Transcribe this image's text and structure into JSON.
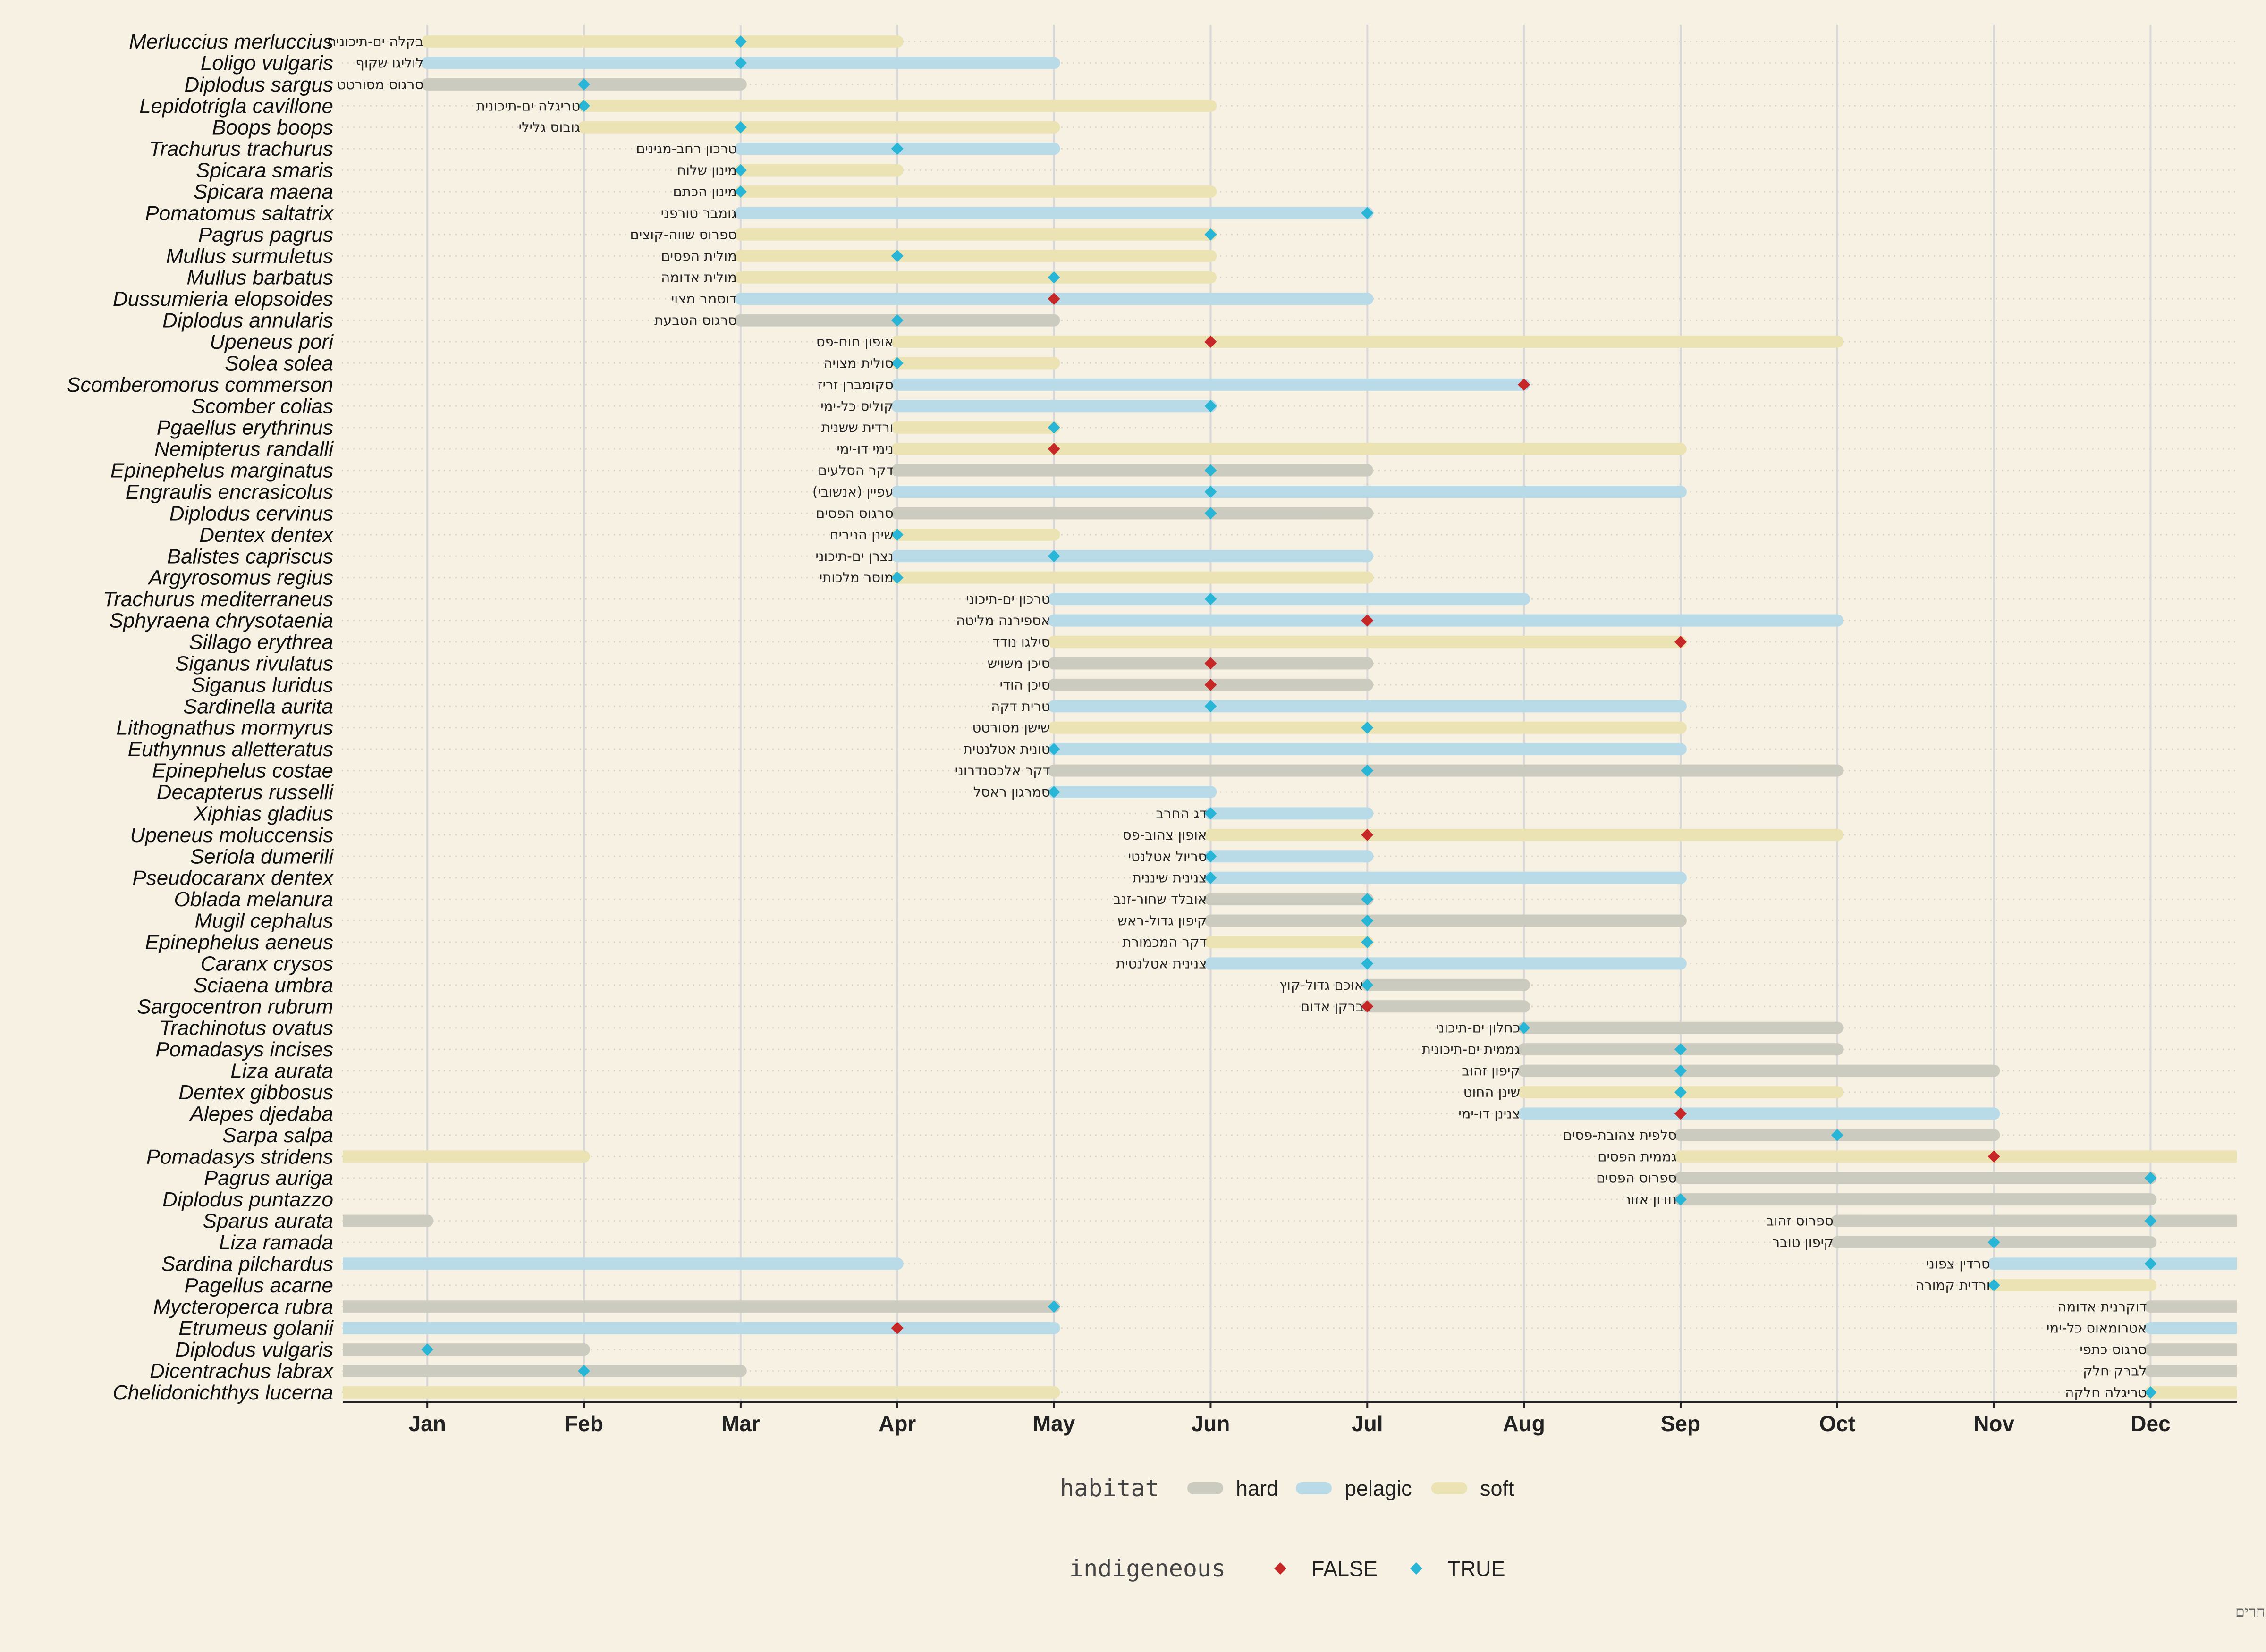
{
  "chart_data": {
    "type": "range-bar",
    "x_axis": {
      "ticks": [
        "Jan",
        "Feb",
        "Mar",
        "Apr",
        "May",
        "Jun",
        "Jul",
        "Aug",
        "Sep",
        "Oct",
        "Nov",
        "Dec"
      ],
      "range": [
        0.46,
        12.55
      ],
      "grid": "vertical"
    },
    "legends": [
      {
        "title": "habitat",
        "position": "bottom",
        "items": [
          {
            "label": "hard",
            "color": "#cccbbf"
          },
          {
            "label": "pelagic",
            "color": "#b9dbe8"
          },
          {
            "label": "soft",
            "color": "#ebe3b4"
          }
        ]
      },
      {
        "title": "indigeneous",
        "position": "bottom",
        "items": [
          {
            "label": "FALSE",
            "color": "#c62828"
          },
          {
            "label": "TRUE",
            "color": "#29b6d6"
          }
        ]
      }
    ],
    "caption": "נתונים מתוך דו\"ח \"עונתיות הרבייה של הדגה בחופי ישראל ובחינת פיזור הפאונה במרחב ובזמן\", שטרן ואחרים",
    "rows": [
      {
        "species": "Merluccius merluccius",
        "hebrew": "בקלה ים-תיכונית",
        "habitat": "soft",
        "indigenous": true,
        "start": 1,
        "end": 4,
        "marker": 3
      },
      {
        "species": "Loligo vulgaris",
        "hebrew": "לוליגו שקוף",
        "habitat": "pelagic",
        "indigenous": true,
        "start": 1,
        "end": 5,
        "marker": 3
      },
      {
        "species": "Diplodus sargus",
        "hebrew": "סרגוס מסורטט",
        "habitat": "hard",
        "indigenous": true,
        "start": 1,
        "end": 3,
        "marker": 2
      },
      {
        "species": "Lepidotrigla cavillone",
        "hebrew": "טריגלה ים-תיכונית",
        "habitat": "soft",
        "indigenous": true,
        "start": 2,
        "end": 6,
        "marker": 2
      },
      {
        "species": "Boops boops",
        "hebrew": "גובוס גלילי",
        "habitat": "soft",
        "indigenous": true,
        "start": 2,
        "end": 5,
        "marker": 3
      },
      {
        "species": "Trachurus trachurus",
        "hebrew": "טרכון רחב-מגינים",
        "habitat": "pelagic",
        "indigenous": true,
        "start": 3,
        "end": 5,
        "marker": 4
      },
      {
        "species": "Spicara smaris",
        "hebrew": "מינון שלוח",
        "habitat": "soft",
        "indigenous": true,
        "start": 3,
        "end": 4,
        "marker": 3
      },
      {
        "species": "Spicara maena",
        "hebrew": "מינון הכתם",
        "habitat": "soft",
        "indigenous": true,
        "start": 3,
        "end": 6,
        "marker": 3
      },
      {
        "species": "Pomatomus saltatrix",
        "hebrew": "גומבר טורפני",
        "habitat": "pelagic",
        "indigenous": true,
        "start": 3,
        "end": 7,
        "marker": 7
      },
      {
        "species": "Pagrus pagrus",
        "hebrew": "ספרוס שווה-קוצים",
        "habitat": "soft",
        "indigenous": true,
        "start": 3,
        "end": 6,
        "marker": 6
      },
      {
        "species": "Mullus surmuletus",
        "hebrew": "מולית הפסים",
        "habitat": "soft",
        "indigenous": true,
        "start": 3,
        "end": 6,
        "marker": 4
      },
      {
        "species": "Mullus barbatus",
        "hebrew": "מולית אדומה",
        "habitat": "soft",
        "indigenous": true,
        "start": 3,
        "end": 6,
        "marker": 5
      },
      {
        "species": "Dussumieria elopsoides",
        "hebrew": "דוסמר מצוי",
        "habitat": "pelagic",
        "indigenous": false,
        "start": 3,
        "end": 7,
        "marker": 5
      },
      {
        "species": "Diplodus annularis",
        "hebrew": "סרגוס הטבעת",
        "habitat": "hard",
        "indigenous": true,
        "start": 3,
        "end": 5,
        "marker": 4
      },
      {
        "species": "Upeneus pori",
        "hebrew": "אופון חום-פס",
        "habitat": "soft",
        "indigenous": false,
        "start": 4,
        "end": 10,
        "marker": 6
      },
      {
        "species": "Solea solea",
        "hebrew": "סולית מצויה",
        "habitat": "soft",
        "indigenous": true,
        "start": 4,
        "end": 5,
        "marker": 4
      },
      {
        "species": "Scomberomorus commerson",
        "hebrew": "סקומברן זריז",
        "habitat": "pelagic",
        "indigenous": false,
        "start": 4,
        "end": 8,
        "marker": 8
      },
      {
        "species": "Scomber colias",
        "hebrew": "קוליס כל-ימי",
        "habitat": "pelagic",
        "indigenous": true,
        "start": 4,
        "end": 6,
        "marker": 6
      },
      {
        "species": "Pgaellus erythrinus",
        "hebrew": "ורדית ששנית",
        "habitat": "soft",
        "indigenous": true,
        "start": 4,
        "end": 5,
        "marker": 5
      },
      {
        "species": "Nemipterus randalli",
        "hebrew": "נימי דו-ימי",
        "habitat": "soft",
        "indigenous": false,
        "start": 4,
        "end": 9,
        "marker": 5
      },
      {
        "species": "Epinephelus marginatus",
        "hebrew": "דקר הסלעים",
        "habitat": "hard",
        "indigenous": true,
        "start": 4,
        "end": 7,
        "marker": 6
      },
      {
        "species": "Engraulis encrasicolus",
        "hebrew": "עפיין (אנשובי)",
        "habitat": "pelagic",
        "indigenous": true,
        "start": 4,
        "end": 9,
        "marker": 6
      },
      {
        "species": "Diplodus cervinus",
        "hebrew": "סרגוס הפסים",
        "habitat": "hard",
        "indigenous": true,
        "start": 4,
        "end": 7,
        "marker": 6
      },
      {
        "species": "Dentex dentex",
        "hebrew": "שינן הניבים",
        "habitat": "soft",
        "indigenous": true,
        "start": 4,
        "end": 5,
        "marker": 4
      },
      {
        "species": "Balistes capriscus",
        "hebrew": "נצרן ים-תיכוני",
        "habitat": "pelagic",
        "indigenous": true,
        "start": 4,
        "end": 7,
        "marker": 5
      },
      {
        "species": "Argyrosomus regius",
        "hebrew": "מוסר מלכותי",
        "habitat": "soft",
        "indigenous": true,
        "start": 4,
        "end": 7,
        "marker": 4
      },
      {
        "species": "Trachurus mediterraneus",
        "hebrew": "טרכון ים-תיכוני",
        "habitat": "pelagic",
        "indigenous": true,
        "start": 5,
        "end": 8,
        "marker": 6
      },
      {
        "species": "Sphyraena chrysotaenia",
        "hebrew": "אספירנה מליטה",
        "habitat": "pelagic",
        "indigenous": false,
        "start": 5,
        "end": 10,
        "marker": 7
      },
      {
        "species": "Sillago erythrea",
        "hebrew": "סילגו נודד",
        "habitat": "soft",
        "indigenous": false,
        "start": 5,
        "end": 9,
        "marker": 9
      },
      {
        "species": "Siganus rivulatus",
        "hebrew": "סיכן משויש",
        "habitat": "hard",
        "indigenous": false,
        "start": 5,
        "end": 7,
        "marker": 6
      },
      {
        "species": "Siganus luridus",
        "hebrew": "סיכן הודי",
        "habitat": "hard",
        "indigenous": false,
        "start": 5,
        "end": 7,
        "marker": 6
      },
      {
        "species": "Sardinella aurita",
        "hebrew": "טרית דקה",
        "habitat": "pelagic",
        "indigenous": true,
        "start": 5,
        "end": 9,
        "marker": 6
      },
      {
        "species": "Lithognathus mormyrus",
        "hebrew": "שישן מסורטט",
        "habitat": "soft",
        "indigenous": true,
        "start": 5,
        "end": 9,
        "marker": 7
      },
      {
        "species": "Euthynnus alletteratus",
        "hebrew": "טונית אטלנטית",
        "habitat": "pelagic",
        "indigenous": true,
        "start": 5,
        "end": 9,
        "marker": 5
      },
      {
        "species": "Epinephelus costae",
        "hebrew": "דקר אלכסנדרוני",
        "habitat": "hard",
        "indigenous": true,
        "start": 5,
        "end": 10,
        "marker": 7
      },
      {
        "species": "Decapterus russelli",
        "hebrew": "סמרגון ראסל",
        "habitat": "pelagic",
        "indigenous": true,
        "start": 5,
        "end": 6,
        "marker": 5
      },
      {
        "species": "Xiphias gladius",
        "hebrew": "דג החרב",
        "habitat": "pelagic",
        "indigenous": true,
        "start": 6,
        "end": 7,
        "marker": 6
      },
      {
        "species": "Upeneus moluccensis",
        "hebrew": "אופון צהוב-פס",
        "habitat": "soft",
        "indigenous": false,
        "start": 6,
        "end": 10,
        "marker": 7
      },
      {
        "species": "Seriola dumerili",
        "hebrew": "סריול אטלנטי",
        "habitat": "pelagic",
        "indigenous": true,
        "start": 6,
        "end": 7,
        "marker": 6
      },
      {
        "species": "Pseudocaranx dentex",
        "hebrew": "צנינית שיננית",
        "habitat": "pelagic",
        "indigenous": true,
        "start": 6,
        "end": 9,
        "marker": 6
      },
      {
        "species": "Oblada melanura",
        "hebrew": "אובלד שחור-זנב",
        "habitat": "hard",
        "indigenous": true,
        "start": 6,
        "end": 7,
        "marker": 7
      },
      {
        "species": "Mugil cephalus",
        "hebrew": "קיפון גדול-ראש",
        "habitat": "hard",
        "indigenous": true,
        "start": 6,
        "end": 9,
        "marker": 7
      },
      {
        "species": "Epinephelus aeneus",
        "hebrew": "דקר המכמורת",
        "habitat": "soft",
        "indigenous": true,
        "start": 6,
        "end": 7,
        "marker": 7
      },
      {
        "species": "Caranx crysos",
        "hebrew": "צנינית אטלנטית",
        "habitat": "pelagic",
        "indigenous": true,
        "start": 6,
        "end": 9,
        "marker": 7
      },
      {
        "species": "Sciaena umbra",
        "hebrew": "אוכם גדול-קוץ",
        "habitat": "hard",
        "indigenous": true,
        "start": 7,
        "end": 8,
        "marker": 7
      },
      {
        "species": "Sargocentron rubrum",
        "hebrew": "ברקן אדום",
        "habitat": "hard",
        "indigenous": false,
        "start": 7,
        "end": 8,
        "marker": 7
      },
      {
        "species": "Trachinotus ovatus",
        "hebrew": "כחלון ים-תיכוני",
        "habitat": "hard",
        "indigenous": true,
        "start": 8,
        "end": 10,
        "marker": 8
      },
      {
        "species": "Pomadasys incises",
        "hebrew": "גממית ים-תיכונית",
        "habitat": "hard",
        "indigenous": true,
        "start": 8,
        "end": 10,
        "marker": 9
      },
      {
        "species": "Liza aurata",
        "hebrew": "קיפון זהוב",
        "habitat": "hard",
        "indigenous": true,
        "start": 8,
        "end": 11,
        "marker": 9
      },
      {
        "species": "Dentex gibbosus",
        "hebrew": "שינן החוט",
        "habitat": "soft",
        "indigenous": true,
        "start": 8,
        "end": 10,
        "marker": 9
      },
      {
        "species": "Alepes djedaba",
        "hebrew": "צנינן דו-ימי",
        "habitat": "pelagic",
        "indigenous": false,
        "start": 8,
        "end": 11,
        "marker": 9
      },
      {
        "species": "Sarpa salpa",
        "hebrew": "סלפית צהובת-פסים",
        "habitat": "hard",
        "indigenous": true,
        "start": 9,
        "end": 11,
        "marker": 10
      },
      {
        "species": "Pomadasys stridens",
        "hebrew": "גממית הפסים",
        "habitat": "soft",
        "indigenous": false,
        "start": 9,
        "end": 12.55,
        "marker": 11,
        "wrap_start": 0.46,
        "wrap_end": 2
      },
      {
        "species": "Pagrus auriga",
        "hebrew": "ספרוס הפסים",
        "habitat": "hard",
        "indigenous": true,
        "start": 9,
        "end": 12,
        "marker": 12
      },
      {
        "species": "Diplodus puntazzo",
        "hebrew": "חדון אזור",
        "habitat": "hard",
        "indigenous": true,
        "start": 9,
        "end": 12,
        "marker": 9
      },
      {
        "species": "Sparus aurata",
        "hebrew": "ספרוס זהוב",
        "habitat": "hard",
        "indigenous": true,
        "start": 10,
        "end": 12.55,
        "marker": 12,
        "wrap_start": 0.46,
        "wrap_end": 1
      },
      {
        "species": "Liza ramada",
        "hebrew": "קיפון טובר",
        "habitat": "hard",
        "indigenous": true,
        "start": 10,
        "end": 12,
        "marker": 11
      },
      {
        "species": "Sardina pilchardus",
        "hebrew": "סרדין צפוני",
        "habitat": "pelagic",
        "indigenous": true,
        "start": 11,
        "end": 12.55,
        "marker": 12,
        "wrap_start": 0.46,
        "wrap_end": 4
      },
      {
        "species": "Pagellus acarne",
        "hebrew": "ורדית קמורה",
        "habitat": "soft",
        "indigenous": true,
        "start": 11,
        "end": 12,
        "marker": 11
      },
      {
        "species": "Mycteroperca rubra",
        "hebrew": "דוקרנית אדומה",
        "habitat": "hard",
        "indigenous": true,
        "start": 12,
        "end": 12.55,
        "marker": 5,
        "wrap_start": 0.46,
        "wrap_end": 5
      },
      {
        "species": "Etrumeus golanii",
        "hebrew": "אטרומאוס כל-ימי",
        "habitat": "pelagic",
        "indigenous": false,
        "start": 12,
        "end": 12.55,
        "marker": 4,
        "wrap_start": 0.46,
        "wrap_end": 5
      },
      {
        "species": "Diplodus vulgaris",
        "hebrew": "סרגוס כתפי",
        "habitat": "hard",
        "indigenous": true,
        "start": 12,
        "end": 12.55,
        "marker": 1,
        "wrap_start": 0.46,
        "wrap_end": 2
      },
      {
        "species": "Dicentrachus labrax",
        "hebrew": "לברק חלק",
        "habitat": "hard",
        "indigenous": true,
        "start": 12,
        "end": 12.55,
        "marker": 2,
        "wrap_start": 0.46,
        "wrap_end": 3
      },
      {
        "species": "Chelidonichthys lucerna",
        "hebrew": "טריגלה חלקה",
        "habitat": "soft",
        "indigenous": true,
        "start": 12,
        "end": 12.55,
        "marker": 12,
        "wrap_start": 0.46,
        "wrap_end": 5
      }
    ]
  }
}
